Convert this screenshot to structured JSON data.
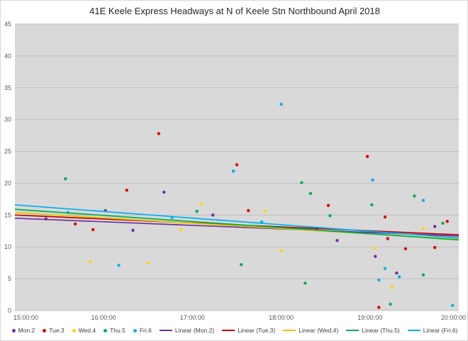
{
  "title": "41E Keele Express Headways at N of Keele Stn Northbound April 2018",
  "colors": {
    "plot_bg": "#d9d9d9",
    "gridline": "#bfbfbf",
    "axis_text": "#595959",
    "title_text": "#262626",
    "legend_text": "#404040"
  },
  "chart_data": {
    "type": "scatter",
    "title": "41E Keele Express Headways at N of Keele Stn Northbound April 2018",
    "xlabel": "",
    "ylabel": "",
    "x_axis": {
      "min": 15,
      "max": 20,
      "ticks": [
        "15:00:00",
        "16:00:00",
        "17:00:00",
        "18:00:00",
        "19:00:00",
        "20:00:00"
      ]
    },
    "y_axis": {
      "min": 0,
      "max": 45,
      "ticks": [
        0,
        5,
        10,
        15,
        20,
        25,
        30,
        35,
        40,
        45
      ]
    },
    "grid": "horizontal",
    "legend_position": "bottom",
    "series": [
      {
        "name": "Mon.2",
        "color": "#7030A0",
        "points": [
          [
            15.35,
            14.4
          ],
          [
            16.02,
            15.7
          ],
          [
            16.33,
            12.6
          ],
          [
            16.68,
            18.6
          ],
          [
            17.23,
            15.0
          ],
          [
            18.4,
            12.8
          ],
          [
            18.63,
            11.0
          ],
          [
            19.06,
            8.5
          ],
          [
            19.3,
            5.9
          ],
          [
            19.73,
            13.2
          ]
        ]
      },
      {
        "name": "Tue.3",
        "color": "#E00000",
        "points": [
          [
            15.68,
            13.6
          ],
          [
            15.88,
            12.7
          ],
          [
            16.26,
            18.9
          ],
          [
            16.62,
            27.8
          ],
          [
            17.5,
            22.9
          ],
          [
            17.63,
            15.7
          ],
          [
            18.53,
            16.5
          ],
          [
            18.97,
            24.2
          ],
          [
            19.1,
            0.5
          ],
          [
            19.17,
            14.7
          ],
          [
            19.2,
            11.3
          ],
          [
            19.4,
            9.7
          ],
          [
            19.73,
            9.9
          ],
          [
            19.87,
            14.0
          ]
        ]
      },
      {
        "name": "Wed.4",
        "color": "#FFD500",
        "points": [
          [
            15.85,
            7.7
          ],
          [
            16.5,
            7.5
          ],
          [
            16.87,
            12.7
          ],
          [
            17.1,
            16.7
          ],
          [
            17.82,
            15.6
          ],
          [
            18.0,
            9.4
          ],
          [
            18.93,
            12.5
          ],
          [
            19.05,
            9.8
          ],
          [
            19.25,
            3.7
          ],
          [
            19.6,
            12.9
          ]
        ]
      },
      {
        "name": "Thu.5",
        "color": "#00B050",
        "points": [
          [
            15.57,
            20.7
          ],
          [
            17.05,
            15.6
          ],
          [
            17.55,
            7.2
          ],
          [
            18.23,
            20.1
          ],
          [
            18.27,
            4.3
          ],
          [
            18.33,
            18.4
          ],
          [
            18.55,
            14.9
          ],
          [
            19.02,
            16.6
          ],
          [
            19.23,
            1.0
          ],
          [
            19.5,
            18.0
          ],
          [
            19.6,
            5.6
          ],
          [
            19.82,
            13.7
          ]
        ]
      },
      {
        "name": "Fri.6",
        "color": "#00B0F0",
        "points": [
          [
            15.6,
            15.4
          ],
          [
            16.17,
            7.1
          ],
          [
            16.77,
            14.6
          ],
          [
            17.46,
            21.9
          ],
          [
            17.78,
            13.9
          ],
          [
            18.0,
            32.4
          ],
          [
            19.03,
            20.5
          ],
          [
            19.1,
            4.8
          ],
          [
            19.17,
            6.6
          ],
          [
            19.33,
            5.3
          ],
          [
            19.6,
            17.3
          ],
          [
            19.93,
            0.8
          ]
        ]
      }
    ],
    "trendlines": [
      {
        "name": "Linear (Mon.2)",
        "color": "#7030A0",
        "start": 14.5,
        "end": 11.7
      },
      {
        "name": "Linear (Tue.3)",
        "color": "#C00000",
        "start": 15.0,
        "end": 11.9
      },
      {
        "name": "Linear (Wed.4)",
        "color": "#E8C400",
        "start": 15.4,
        "end": 11.2
      },
      {
        "name": "Linear (Thu.5)",
        "color": "#00B050",
        "start": 15.9,
        "end": 11.1
      },
      {
        "name": "Linear (Fri.6)",
        "color": "#00B0F0",
        "start": 16.6,
        "end": 11.4
      }
    ]
  },
  "legend": {
    "items": [
      {
        "type": "marker",
        "label": "Mon.2",
        "color": "#7030A0"
      },
      {
        "type": "marker",
        "label": "Tue.3",
        "color": "#E00000"
      },
      {
        "type": "marker",
        "label": "Wed.4",
        "color": "#FFD500"
      },
      {
        "type": "marker",
        "label": "Thu.5",
        "color": "#00B050"
      },
      {
        "type": "marker",
        "label": "Fri.6",
        "color": "#00B0F0"
      },
      {
        "type": "line",
        "label": "Linear (Mon.2)",
        "color": "#7030A0"
      },
      {
        "type": "line",
        "label": "Linear (Tue.3)",
        "color": "#C00000"
      },
      {
        "type": "line",
        "label": "Linear (Wed.4)",
        "color": "#E8C400"
      },
      {
        "type": "line",
        "label": "Linear (Thu.5)",
        "color": "#00B050"
      },
      {
        "type": "line",
        "label": "Linear (Fri.6)",
        "color": "#00B0F0"
      }
    ]
  }
}
